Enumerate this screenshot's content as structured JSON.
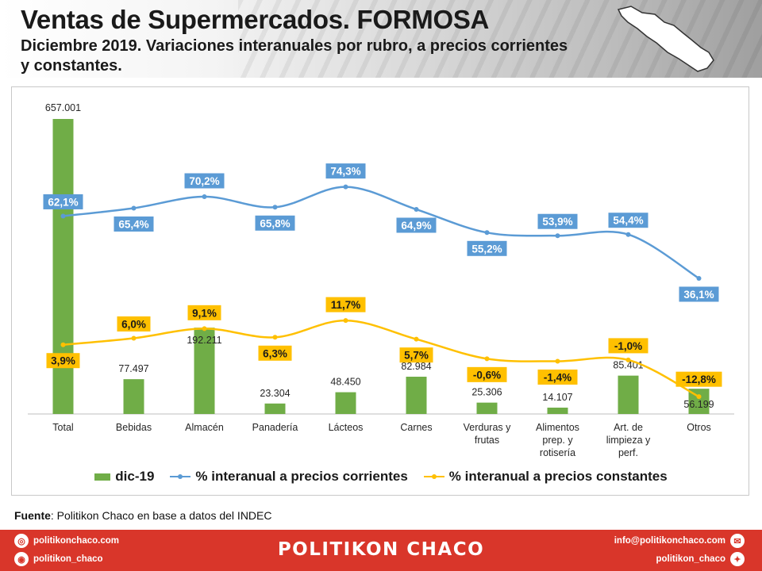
{
  "header": {
    "title": "Ventas de Supermercados. FORMOSA",
    "subtitle": "Diciembre 2019. Variaciones interanuales por rubro, a precios corrientes y constantes."
  },
  "colors": {
    "bars": "#70ad47",
    "corrientes": "#5b9bd5",
    "constantes": "#ffc000",
    "footer": "#d9362a"
  },
  "chart_data": {
    "type": "bar",
    "categories": [
      "Total",
      "Bebidas",
      "Almacén",
      "Panadería",
      "Lácteos",
      "Carnes",
      "Verduras y frutas",
      "Alimentos prep. y rotisería",
      "Art. de limpieza y perf.",
      "Otros"
    ],
    "category_lines": [
      [
        "Total"
      ],
      [
        "Bebidas"
      ],
      [
        "Almacén"
      ],
      [
        "Panadería"
      ],
      [
        "Lácteos"
      ],
      [
        "Carnes"
      ],
      [
        "Verduras y",
        "frutas"
      ],
      [
        "Alimentos",
        "prep. y",
        "rotisería"
      ],
      [
        "Art. de",
        "limpieza y",
        "perf."
      ],
      [
        "Otros"
      ]
    ],
    "series": [
      {
        "name": "dic-19",
        "type": "bar",
        "values": [
          657001,
          77497,
          192211,
          23304,
          48450,
          82984,
          25306,
          14107,
          85401,
          56199
        ],
        "labels": [
          "657.001",
          "77.497",
          "192.211",
          "23.304",
          "48.450",
          "82.984",
          "25.306",
          "14.107",
          "85.401",
          "56.199"
        ]
      },
      {
        "name": "% interanual a precios corrientes",
        "type": "line",
        "values": [
          62.1,
          65.4,
          70.2,
          65.8,
          74.3,
          64.9,
          55.2,
          53.9,
          54.4,
          36.1
        ],
        "labels": [
          "62,1%",
          "65,4%",
          "70,2%",
          "65,8%",
          "74,3%",
          "64,9%",
          "55,2%",
          "53,9%",
          "54,4%",
          "36,1%"
        ]
      },
      {
        "name": "% interanual a precios constantes",
        "type": "line",
        "values": [
          3.9,
          6.0,
          9.1,
          6.3,
          11.7,
          5.7,
          -0.6,
          -1.4,
          -1.0,
          -12.8
        ],
        "labels": [
          "3,9%",
          "6,0%",
          "9,1%",
          "6,3%",
          "11,7%",
          "5,7%",
          "-0,6%",
          "-1,4%",
          "-1,0%",
          "-12,8%"
        ]
      }
    ],
    "legend": "bottom",
    "grid": false
  },
  "source": {
    "label": "Fuente",
    "text": ": Politikon Chaco en base a datos del INDEC"
  },
  "footer": {
    "brand": "POLITIKON CHACO",
    "website": "politikonchaco.com",
    "instagram": "politikon_chaco",
    "email": "info@politikonchaco.com",
    "twitter": "politikon_chaco"
  }
}
